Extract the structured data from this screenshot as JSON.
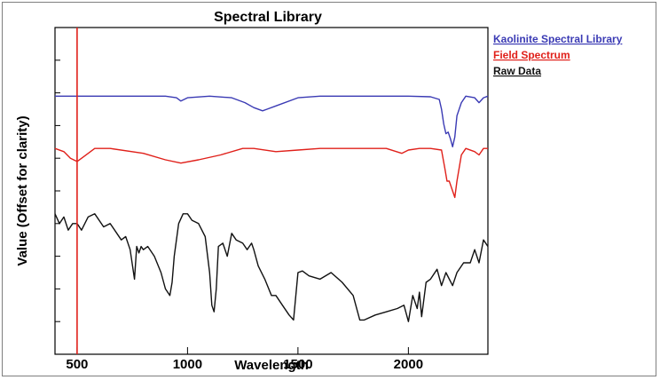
{
  "chart_data": {
    "type": "line",
    "title": "Spectral Library",
    "xlabel": "Wavelength",
    "ylabel": "Value (Offset for clarity)",
    "xlim": [
      400,
      2360
    ],
    "ylim": [
      0,
      10
    ],
    "x_ticks": [
      500,
      1000,
      1500,
      2000
    ],
    "y_ticks_unlabeled": 10,
    "grid": false,
    "legend_position": "outside-top-right",
    "marker_line": {
      "x": 500,
      "color": "#e0201a"
    },
    "series": [
      {
        "name": "Kaolinite Spectral Library",
        "color": "#3a3ab4",
        "x": [
          400,
          600,
          900,
          950,
          970,
          1000,
          1100,
          1200,
          1260,
          1300,
          1340,
          1360,
          1400,
          1500,
          1600,
          1700,
          1800,
          1900,
          2000,
          2100,
          2140,
          2150,
          2160,
          2170,
          2180,
          2190,
          2200,
          2210,
          2220,
          2240,
          2260,
          2300,
          2320,
          2340,
          2360
        ],
        "y": [
          7.9,
          7.9,
          7.9,
          7.85,
          7.75,
          7.85,
          7.9,
          7.85,
          7.7,
          7.55,
          7.45,
          7.5,
          7.6,
          7.85,
          7.9,
          7.9,
          7.9,
          7.9,
          7.9,
          7.88,
          7.8,
          7.5,
          7.05,
          6.75,
          6.8,
          6.6,
          6.35,
          6.65,
          7.3,
          7.7,
          7.9,
          7.85,
          7.7,
          7.85,
          7.9
        ]
      },
      {
        "name": "Field Spectrum",
        "color": "#e0201a",
        "x": [
          400,
          440,
          470,
          500,
          530,
          580,
          650,
          800,
          900,
          970,
          1050,
          1150,
          1250,
          1300,
          1400,
          1500,
          1600,
          1700,
          1800,
          1900,
          1970,
          2000,
          2050,
          2100,
          2150,
          2165,
          2175,
          2185,
          2200,
          2210,
          2220,
          2240,
          2260,
          2300,
          2320,
          2340,
          2360
        ],
        "y": [
          6.3,
          6.2,
          6.0,
          5.9,
          6.05,
          6.3,
          6.3,
          6.15,
          5.95,
          5.85,
          5.95,
          6.1,
          6.3,
          6.3,
          6.2,
          6.25,
          6.3,
          6.3,
          6.3,
          6.3,
          6.15,
          6.25,
          6.3,
          6.3,
          6.25,
          5.7,
          5.3,
          5.3,
          5.0,
          4.8,
          5.3,
          6.1,
          6.3,
          6.2,
          6.1,
          6.3,
          6.3
        ]
      },
      {
        "name": "Raw Data",
        "color": "#111111",
        "x": [
          400,
          420,
          440,
          460,
          480,
          500,
          520,
          550,
          580,
          620,
          650,
          680,
          700,
          720,
          740,
          760,
          770,
          780,
          790,
          800,
          820,
          850,
          880,
          900,
          920,
          930,
          940,
          960,
          980,
          1000,
          1020,
          1050,
          1080,
          1100,
          1110,
          1120,
          1130,
          1140,
          1160,
          1180,
          1200,
          1220,
          1250,
          1270,
          1290,
          1300,
          1320,
          1350,
          1380,
          1400,
          1430,
          1460,
          1480,
          1500,
          1520,
          1550,
          1600,
          1650,
          1700,
          1750,
          1780,
          1800,
          1850,
          1900,
          1950,
          1980,
          2000,
          2020,
          2040,
          2050,
          2060,
          2080,
          2100,
          2130,
          2150,
          2170,
          2200,
          2220,
          2250,
          2280,
          2300,
          2320,
          2340,
          2360
        ],
        "y": [
          4.3,
          4.0,
          4.2,
          3.8,
          4.0,
          4.0,
          3.8,
          4.2,
          4.3,
          3.9,
          4.0,
          3.7,
          3.5,
          3.6,
          3.2,
          2.3,
          3.3,
          3.1,
          3.3,
          3.2,
          3.3,
          3.0,
          2.5,
          2.0,
          1.8,
          2.2,
          3.0,
          4.0,
          4.3,
          4.3,
          4.1,
          4.0,
          3.6,
          2.5,
          1.5,
          1.3,
          2.0,
          3.3,
          3.4,
          3.0,
          3.7,
          3.5,
          3.4,
          3.2,
          3.4,
          3.2,
          2.7,
          2.3,
          1.8,
          1.8,
          1.5,
          1.2,
          1.05,
          2.5,
          2.55,
          2.4,
          2.3,
          2.5,
          2.2,
          1.8,
          1.05,
          1.05,
          1.2,
          1.3,
          1.4,
          1.5,
          1.0,
          1.8,
          1.4,
          1.9,
          1.15,
          2.2,
          2.3,
          2.6,
          2.1,
          2.5,
          2.1,
          2.5,
          2.8,
          2.8,
          3.2,
          2.8,
          3.5,
          3.3
        ]
      }
    ]
  }
}
